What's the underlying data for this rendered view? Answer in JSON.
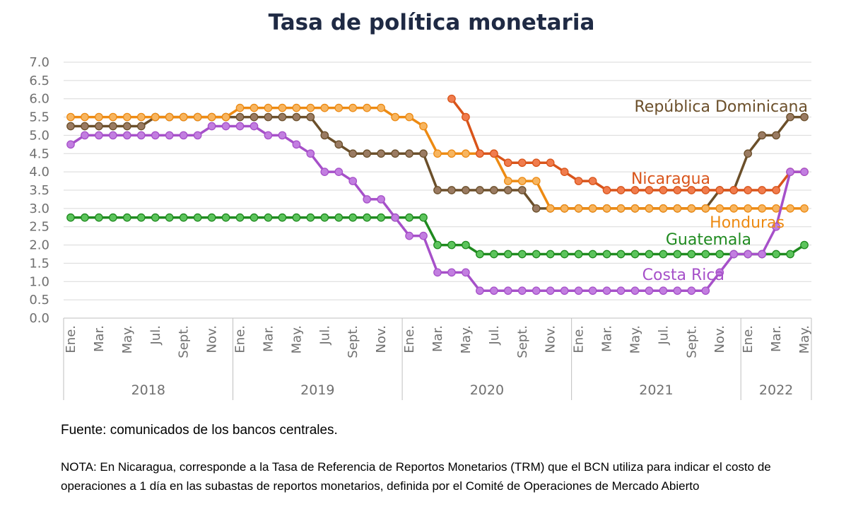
{
  "title": "Tasa de política monetaria",
  "source": "Fuente: comunicados de los bancos centrales.",
  "note": "NOTA: En Nicaragua, corresponde a la Tasa de Referencia de Reportos Monetarios (TRM) que el BCN utiliza para indicar el costo de operaciones a 1 día en las subastas de reportos monetarios, definida por el Comité de Operaciones de Mercado Abierto",
  "chart_data": {
    "type": "line",
    "title": "Tasa de política monetaria",
    "ylim": [
      0,
      7
    ],
    "yticks": [
      "0.0",
      "0.5",
      "1.0",
      "1.5",
      "2.0",
      "2.5",
      "3.0",
      "3.5",
      "4.0",
      "4.5",
      "5.0",
      "5.5",
      "6.0",
      "6.5",
      "7.0"
    ],
    "grid": true,
    "x_period": "monthly, Ene. 2018 – May. 2022",
    "month_labels": [
      "Ene.",
      "Mar.",
      "May.",
      "Jul.",
      "Sept.",
      "Nov.",
      "Ene.",
      "Mar.",
      "May.",
      "Jul.",
      "Sept.",
      "Nov.",
      "Ene.",
      "Mar.",
      "May.",
      "Jul.",
      "Sept.",
      "Nov.",
      "Ene.",
      "Mar.",
      "May.",
      "Jul.",
      "Sept.",
      "Nov.",
      "Ene.",
      "Mar.",
      "May."
    ],
    "years": [
      {
        "label": "2018",
        "months": 12
      },
      {
        "label": "2019",
        "months": 12
      },
      {
        "label": "2020",
        "months": 12
      },
      {
        "label": "2021",
        "months": 12
      },
      {
        "label": "2022",
        "months": 5
      }
    ],
    "series": [
      {
        "name": "República Dominicana",
        "color": "#6b4f2a",
        "marker": "#9a7b62",
        "values": [
          5.25,
          5.25,
          5.25,
          5.25,
          5.25,
          5.25,
          5.5,
          5.5,
          5.5,
          5.5,
          5.5,
          5.5,
          5.5,
          5.5,
          5.5,
          5.5,
          5.5,
          5.5,
          5.0,
          4.75,
          4.5,
          4.5,
          4.5,
          4.5,
          4.5,
          4.5,
          3.5,
          3.5,
          3.5,
          3.5,
          3.5,
          3.5,
          3.5,
          3.0,
          3.0,
          3.0,
          3.0,
          3.0,
          3.0,
          3.0,
          3.0,
          3.0,
          3.0,
          3.0,
          3.0,
          3.0,
          3.5,
          3.5,
          4.5,
          5.0,
          5.0,
          5.5,
          5.5
        ]
      },
      {
        "name": "Honduras",
        "color": "#ed8a12",
        "marker": "#f7b560",
        "values": [
          5.5,
          5.5,
          5.5,
          5.5,
          5.5,
          5.5,
          5.5,
          5.5,
          5.5,
          5.5,
          5.5,
          5.5,
          5.75,
          5.75,
          5.75,
          5.75,
          5.75,
          5.75,
          5.75,
          5.75,
          5.75,
          5.75,
          5.75,
          5.5,
          5.5,
          5.25,
          4.5,
          4.5,
          4.5,
          4.5,
          4.5,
          3.75,
          3.75,
          3.75,
          3.0,
          3.0,
          3.0,
          3.0,
          3.0,
          3.0,
          3.0,
          3.0,
          3.0,
          3.0,
          3.0,
          3.0,
          3.0,
          3.0,
          3.0,
          3.0,
          3.0,
          3.0,
          3.0
        ]
      },
      {
        "name": "Nicaragua",
        "color": "#d9541a",
        "marker": "#f07c4d",
        "values": [
          null,
          null,
          null,
          null,
          null,
          null,
          null,
          null,
          null,
          null,
          null,
          null,
          null,
          null,
          null,
          null,
          null,
          null,
          null,
          null,
          null,
          null,
          null,
          null,
          null,
          null,
          null,
          6.0,
          5.5,
          4.5,
          4.5,
          4.25,
          4.25,
          4.25,
          4.25,
          4.0,
          3.75,
          3.75,
          3.5,
          3.5,
          3.5,
          3.5,
          3.5,
          3.5,
          3.5,
          3.5,
          3.5,
          3.5,
          3.5,
          3.5,
          3.5,
          4.0,
          4.0
        ]
      },
      {
        "name": "Guatemala",
        "color": "#1f8a1f",
        "marker": "#5cc45c",
        "values": [
          2.75,
          2.75,
          2.75,
          2.75,
          2.75,
          2.75,
          2.75,
          2.75,
          2.75,
          2.75,
          2.75,
          2.75,
          2.75,
          2.75,
          2.75,
          2.75,
          2.75,
          2.75,
          2.75,
          2.75,
          2.75,
          2.75,
          2.75,
          2.75,
          2.75,
          2.75,
          2.0,
          2.0,
          2.0,
          1.75,
          1.75,
          1.75,
          1.75,
          1.75,
          1.75,
          1.75,
          1.75,
          1.75,
          1.75,
          1.75,
          1.75,
          1.75,
          1.75,
          1.75,
          1.75,
          1.75,
          1.75,
          1.75,
          1.75,
          1.75,
          1.75,
          1.75,
          2.0
        ]
      },
      {
        "name": "Costa Rica",
        "color": "#a650c9",
        "marker": "#c27ee0",
        "values": [
          4.75,
          5.0,
          5.0,
          5.0,
          5.0,
          5.0,
          5.0,
          5.0,
          5.0,
          5.0,
          5.25,
          5.25,
          5.25,
          5.25,
          5.0,
          5.0,
          4.75,
          4.5,
          4.0,
          4.0,
          3.75,
          3.25,
          3.25,
          2.75,
          2.25,
          2.25,
          1.25,
          1.25,
          1.25,
          0.75,
          0.75,
          0.75,
          0.75,
          0.75,
          0.75,
          0.75,
          0.75,
          0.75,
          0.75,
          0.75,
          0.75,
          0.75,
          0.75,
          0.75,
          0.75,
          0.75,
          1.25,
          1.75,
          1.75,
          1.75,
          2.5,
          4.0,
          4.0
        ]
      }
    ]
  }
}
